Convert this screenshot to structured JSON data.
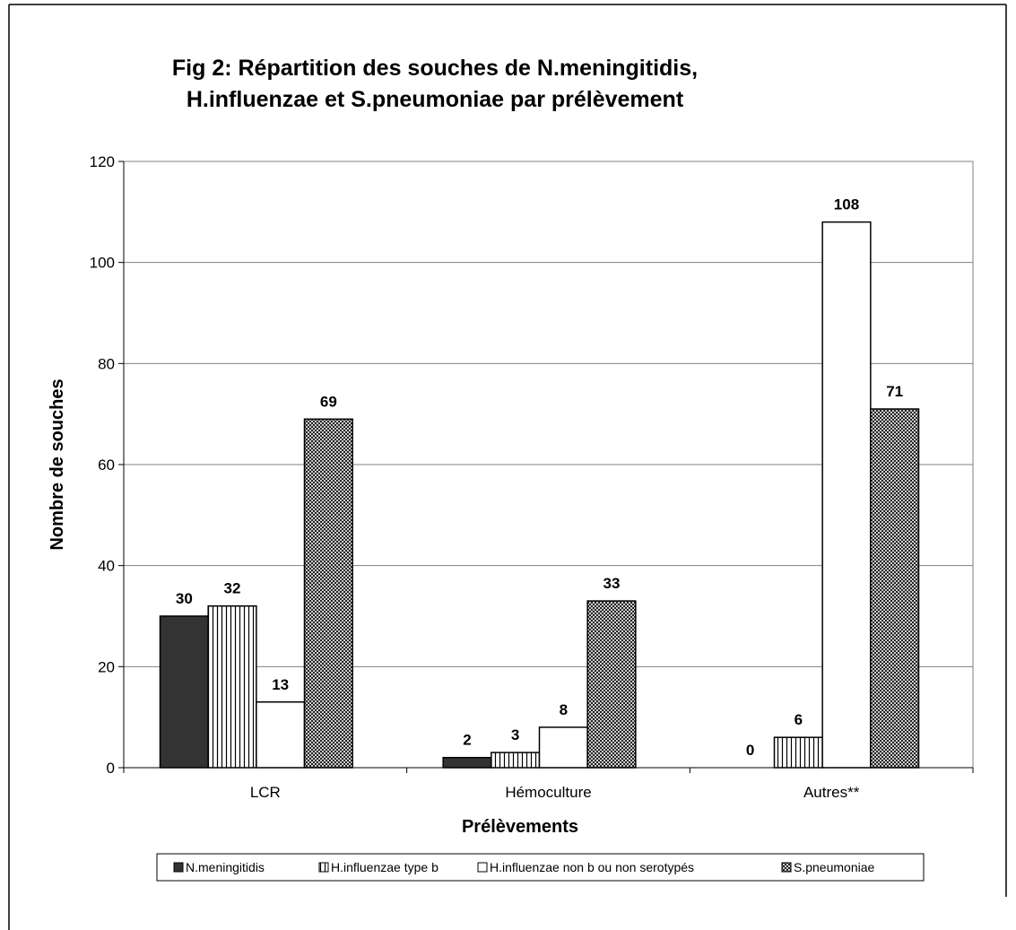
{
  "chart_data": {
    "type": "bar",
    "title": [
      "Fig 2: Répartition des souches de N.meningitidis,",
      "H.influenzae et S.pneumoniae par prélèvement"
    ],
    "x_label": "Prélèvements",
    "y_label": "Nombre de souches",
    "categories": [
      "LCR",
      "Hémoculture",
      "Autres**"
    ],
    "series": [
      {
        "name": "N.meningitidis",
        "color": "#333333",
        "pattern": "solid",
        "values": [
          30,
          2,
          0
        ]
      },
      {
        "name": "H.influenzae type b",
        "color": "#ffffff",
        "pattern": "vertical-stripes",
        "values": [
          32,
          3,
          6
        ]
      },
      {
        "name": "H.influenzae non b ou non serotypés",
        "color": "#ffffff",
        "pattern": "solid",
        "values": [
          13,
          8,
          108
        ]
      },
      {
        "name": "S.pneumoniae",
        "color": "#ffffff",
        "pattern": "crosshatch",
        "values": [
          69,
          33,
          71
        ]
      }
    ],
    "ylim": [
      0,
      120
    ],
    "yticks": [
      0,
      20,
      40,
      60,
      80,
      100,
      120
    ],
    "grid": true,
    "legend": "bottom"
  }
}
